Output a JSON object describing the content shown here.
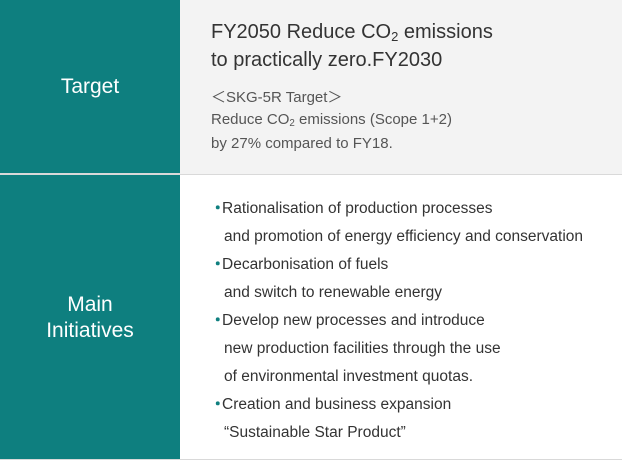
{
  "target": {
    "header": "Target",
    "headline": {
      "line1_pre": "FY2050 Reduce CO",
      "line1_sub": "2",
      "line1_post": " emissions",
      "line2": "to practically zero.FY2030"
    },
    "sub": {
      "line1": "＜SKG-5R Target＞",
      "line2_pre": "Reduce CO",
      "line2_sub": "2",
      "line2_post": " emissions (Scope 1+2)",
      "line3": "by 27% compared to FY18."
    }
  },
  "main": {
    "header_line1": "Main",
    "header_line2": "Initiatives",
    "bullet_glyph": "・",
    "items": [
      {
        "lines": [
          "Rationalisation of production processes",
          "and promotion of energy efficiency and conservation"
        ]
      },
      {
        "lines": [
          "Decarbonisation of fuels",
          "and switch to renewable energy"
        ]
      },
      {
        "lines": [
          "Develop new processes and introduce",
          "new production facilities through the use",
          "of environmental investment quotas."
        ]
      },
      {
        "lines": [
          "Creation and business expansion",
          "“Sustainable Star Product”"
        ]
      }
    ]
  },
  "colors": {
    "header_bg": "#0e7f7f",
    "target_cell_bg": "#f3f3f3",
    "bullet": "#0e7f7f"
  }
}
